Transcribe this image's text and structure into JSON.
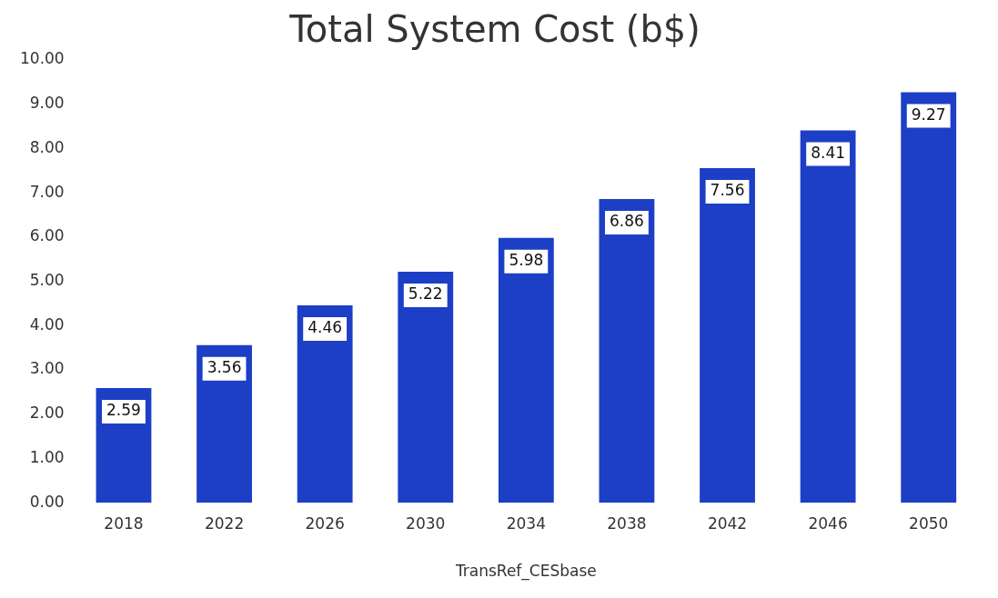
{
  "chart_data": {
    "type": "bar",
    "title": "Total System Cost (b$)",
    "xlabel": "TransRef_CESbase",
    "categories": [
      "2018",
      "2022",
      "2026",
      "2030",
      "2034",
      "2038",
      "2042",
      "2046",
      "2050"
    ],
    "values": [
      2.59,
      3.56,
      4.46,
      5.22,
      5.98,
      6.86,
      7.56,
      8.41,
      9.27
    ],
    "color": "#1c3fc6",
    "ylim": [
      0,
      10
    ],
    "yticks": [
      {
        "value": 0,
        "label": "0.00"
      },
      {
        "value": 1,
        "label": "1.00"
      },
      {
        "value": 2,
        "label": "2.00"
      },
      {
        "value": 3,
        "label": "3.00"
      },
      {
        "value": 4,
        "label": "4.00"
      },
      {
        "value": 5,
        "label": "5.00"
      },
      {
        "value": 6,
        "label": "6.00"
      },
      {
        "value": 7,
        "label": "7.00"
      },
      {
        "value": 8,
        "label": "8.00"
      },
      {
        "value": 9,
        "label": "9.00"
      },
      {
        "value": 10,
        "label": "10.00"
      }
    ],
    "grid": false,
    "legend": false,
    "data_labels": true
  }
}
